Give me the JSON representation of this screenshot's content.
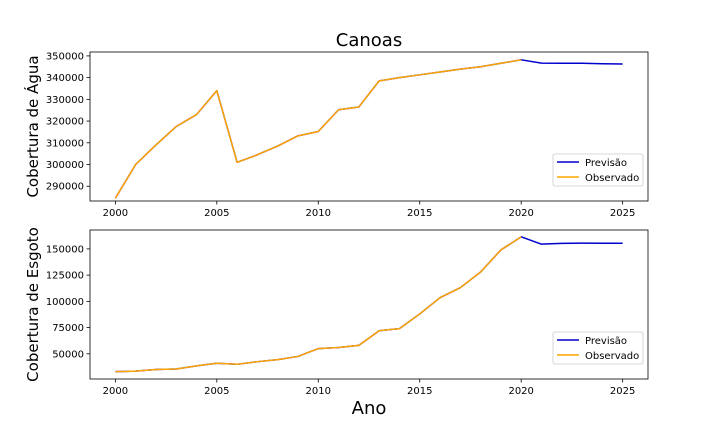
{
  "chart_data": [
    {
      "type": "line",
      "title": "Canoas",
      "xlabel": "",
      "ylabel": "Cobertura de Água",
      "xlim": [
        1998.75,
        2026.25
      ],
      "ylim": [
        283200,
        351800
      ],
      "xticks": [
        2000,
        2005,
        2010,
        2015,
        2020,
        2025
      ],
      "yticks": [
        290000,
        300000,
        310000,
        320000,
        330000,
        340000,
        350000
      ],
      "legend": "lower-right",
      "series": [
        {
          "name": "Previsão",
          "color": "#0000cc",
          "x": [
            2000,
            2001,
            2002,
            2003,
            2004,
            2005,
            2006,
            2007,
            2008,
            2009,
            2010,
            2011,
            2012,
            2013,
            2014,
            2015,
            2016,
            2017,
            2018,
            2019,
            2020,
            2021,
            2022,
            2023,
            2024,
            2025
          ],
          "values": [
            284500,
            300000,
            309000,
            317500,
            323000,
            334000,
            301000,
            304500,
            308500,
            313200,
            315200,
            325200,
            326500,
            338500,
            340000,
            341300,
            342600,
            343900,
            345000,
            346600,
            348200,
            346700,
            346600,
            346600,
            346400,
            346300
          ]
        },
        {
          "name": "Observado",
          "color": "#ffa500",
          "x": [
            2000,
            2001,
            2002,
            2003,
            2004,
            2005,
            2006,
            2007,
            2008,
            2009,
            2010,
            2011,
            2012,
            2013,
            2014,
            2015,
            2016,
            2017,
            2018,
            2019,
            2020
          ],
          "values": [
            284500,
            300000,
            309000,
            317500,
            323000,
            334000,
            301000,
            304500,
            308500,
            313200,
            315200,
            325200,
            326500,
            338500,
            340000,
            341300,
            342600,
            343900,
            345000,
            346600,
            348200
          ]
        }
      ]
    },
    {
      "type": "line",
      "title": "",
      "xlabel": "Ano",
      "ylabel": "Cobertura de Esgoto",
      "xlim": [
        1998.75,
        2026.25
      ],
      "ylim": [
        26000,
        168000
      ],
      "xticks": [
        2000,
        2005,
        2010,
        2015,
        2020,
        2025
      ],
      "yticks": [
        50000,
        75000,
        100000,
        125000,
        150000
      ],
      "legend": "lower-right",
      "series": [
        {
          "name": "Previsão",
          "color": "#0000cc",
          "x": [
            2000,
            2001,
            2002,
            2003,
            2004,
            2005,
            2006,
            2007,
            2008,
            2009,
            2010,
            2011,
            2012,
            2013,
            2014,
            2015,
            2016,
            2017,
            2018,
            2019,
            2020,
            2021,
            2022,
            2023,
            2024,
            2025
          ],
          "values": [
            33000,
            33500,
            35000,
            35500,
            38500,
            41000,
            40000,
            42500,
            44500,
            47500,
            55000,
            56000,
            58000,
            72000,
            74000,
            88000,
            103500,
            113000,
            128000,
            149000,
            161500,
            154500,
            155300,
            155500,
            155400,
            155400
          ]
        },
        {
          "name": "Observado",
          "color": "#ffa500",
          "x": [
            2000,
            2001,
            2002,
            2003,
            2004,
            2005,
            2006,
            2007,
            2008,
            2009,
            2010,
            2011,
            2012,
            2013,
            2014,
            2015,
            2016,
            2017,
            2018,
            2019,
            2020
          ],
          "values": [
            33000,
            33500,
            35000,
            35500,
            38500,
            41000,
            40000,
            42500,
            44500,
            47500,
            55000,
            56000,
            58000,
            72000,
            74000,
            88000,
            103500,
            113000,
            128000,
            149000,
            161500
          ]
        }
      ]
    }
  ]
}
